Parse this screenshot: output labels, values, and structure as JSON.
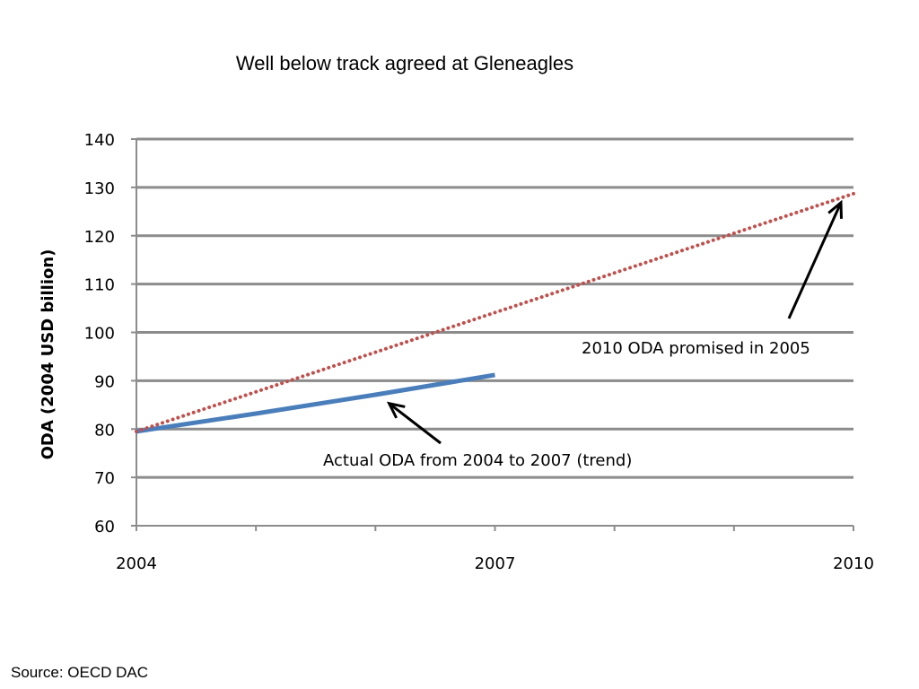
{
  "page": {
    "title": "Well below track agreed at Gleneagles",
    "source": "Source: OECD DAC"
  },
  "chart_data": {
    "type": "line",
    "title": "",
    "xlabel": "",
    "ylabel": "ODA (2004 USD billion)",
    "xlim": [
      2004,
      2010
    ],
    "ylim": [
      60,
      140
    ],
    "x_ticks": [
      2004,
      2007,
      2010
    ],
    "y_ticks": [
      60,
      70,
      80,
      90,
      100,
      110,
      120,
      130,
      140
    ],
    "grid": true,
    "series": [
      {
        "name": "Actual ODA from 2004 to 2007 (trend)",
        "style": "solid",
        "color": "#4a7ebb",
        "x": [
          2004,
          2005,
          2006,
          2007
        ],
        "y": [
          79.5,
          83.2,
          87.1,
          91.2
        ]
      },
      {
        "name": "2010 ODA promised in 2005",
        "style": "dotted",
        "color": "#c0504d",
        "x": [
          2004,
          2010
        ],
        "y": [
          79.5,
          128.7
        ]
      }
    ],
    "annotations": [
      {
        "text": "2010 ODA promised in 2005",
        "points_to": {
          "x": 2010,
          "y": 128.7
        }
      },
      {
        "text": "Actual ODA from 2004 to 2007 (trend)",
        "points_to": {
          "x": 2006.1,
          "y": 87.7
        }
      }
    ]
  }
}
